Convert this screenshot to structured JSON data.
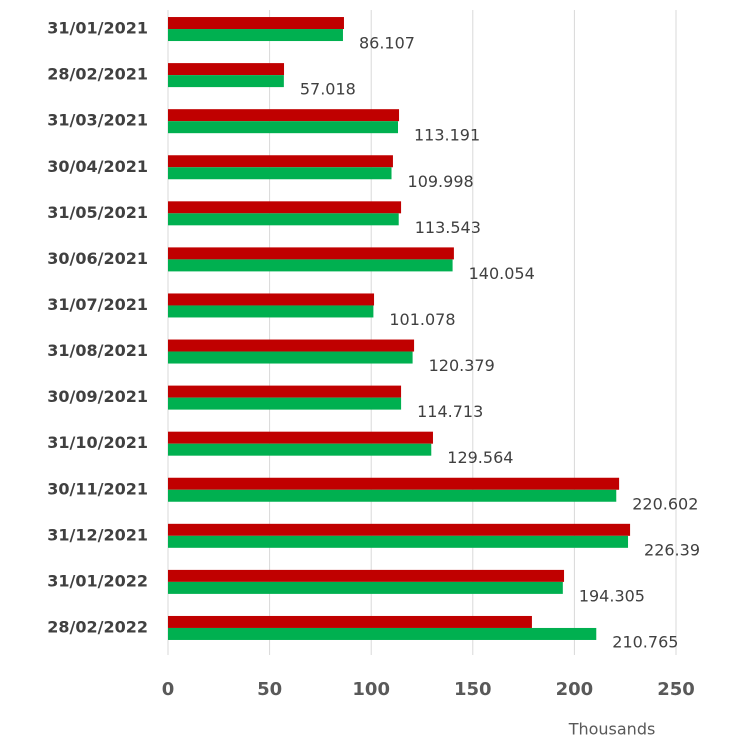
{
  "chart_data": {
    "type": "bar",
    "orientation": "horizontal",
    "categories": [
      "31/01/2021",
      "28/02/2021",
      "31/03/2021",
      "30/04/2021",
      "31/05/2021",
      "30/06/2021",
      "31/07/2021",
      "31/08/2021",
      "30/09/2021",
      "31/10/2021",
      "30/11/2021",
      "31/12/2021",
      "31/01/2022",
      "28/02/2022"
    ],
    "series": [
      {
        "color": "#c00000",
        "values": [
          86.6,
          57.1,
          113.7,
          110.7,
          114.7,
          140.7,
          101.4,
          121.1,
          114.7,
          130.4,
          222,
          227.4,
          194.9,
          179.1
        ]
      },
      {
        "color": "#00b050",
        "values": [
          86.107,
          57.018,
          113.191,
          109.998,
          113.543,
          140.054,
          101.078,
          120.379,
          114.713,
          129.564,
          220.602,
          226.39,
          194.305,
          210.765
        ],
        "data_labels": true
      }
    ],
    "xlabel": "Thousands",
    "xlim": [
      0,
      250
    ],
    "xticks": [
      0,
      50,
      100,
      150,
      200,
      250
    ],
    "grid": true
  }
}
